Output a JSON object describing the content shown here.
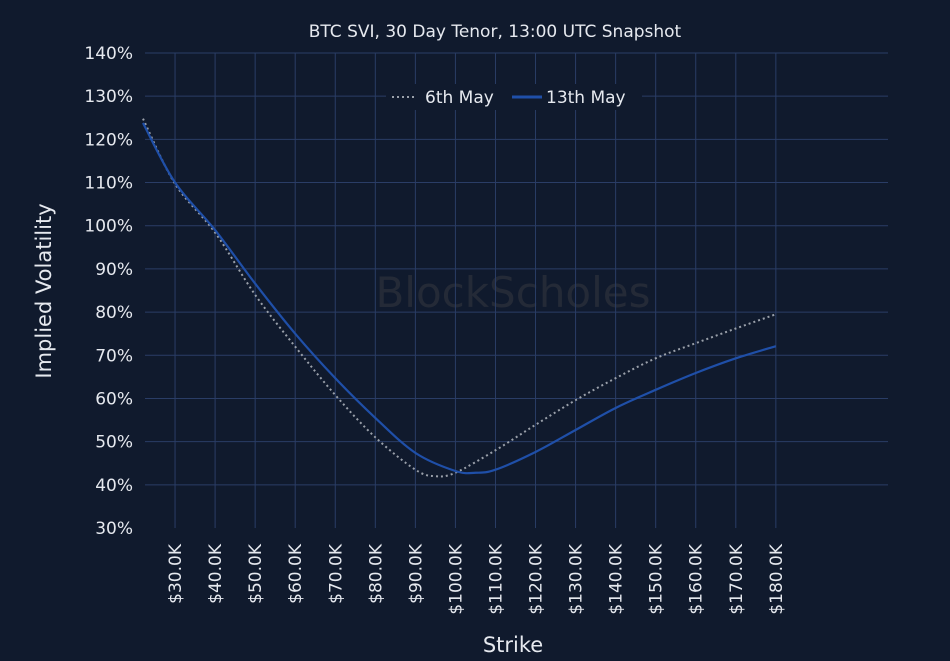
{
  "chart_data": {
    "type": "line",
    "title": "BTC SVI, 30 Day Tenor, 13:00 UTC Snapshot",
    "xlabel": "Strike",
    "ylabel": "Implied Volatility",
    "watermark": "BlockScholes",
    "xlim": [
      22.5,
      208
    ],
    "ylim": [
      30,
      140
    ],
    "x_ticks": [
      30,
      40,
      50,
      60,
      70,
      80,
      90,
      100,
      110,
      120,
      130,
      140,
      150,
      160,
      170,
      180
    ],
    "x_tick_labels": [
      "$30.0K",
      "$40.0K",
      "$50.0K",
      "$60.0K",
      "$70.0K",
      "$80.0K",
      "$90.0K",
      "$100.0K",
      "$110.0K",
      "$120.0K",
      "$130.0K",
      "$140.0K",
      "$150.0K",
      "$160.0K",
      "$170.0K",
      "$180.0K"
    ],
    "y_ticks": [
      30,
      40,
      50,
      60,
      70,
      80,
      90,
      100,
      110,
      120,
      130,
      140
    ],
    "y_tick_labels": [
      "30%",
      "40%",
      "50%",
      "60%",
      "70%",
      "80%",
      "90%",
      "100%",
      "110%",
      "120%",
      "130%",
      "140%"
    ],
    "grid": true,
    "legend_position": "top-center",
    "series": [
      {
        "name": "6th May",
        "style": "dotted",
        "color": "#9aa0aa",
        "x": [
          22,
          30,
          40,
          50,
          60,
          70,
          80,
          90,
          95,
          100,
          110,
          120,
          130,
          140,
          150,
          160,
          170,
          180
        ],
        "y": [
          124.8,
          109.7,
          98.4,
          84,
          72,
          60.8,
          51,
          43.5,
          42,
          42.8,
          48,
          53.9,
          59.6,
          64.7,
          69.3,
          72.8,
          76.2,
          79.5
        ]
      },
      {
        "name": "13th May",
        "style": "solid",
        "color": "#1f4fa8",
        "x": [
          22,
          30,
          40,
          50,
          60,
          70,
          80,
          90,
          100,
          105,
          110,
          120,
          130,
          140,
          150,
          160,
          170,
          180
        ],
        "y": [
          123.8,
          110,
          99,
          86.6,
          75,
          64.7,
          55.5,
          47.4,
          43.2,
          42.8,
          43.5,
          47.6,
          52.7,
          57.8,
          62,
          65.9,
          69.3,
          72.1
        ]
      }
    ]
  },
  "colors": {
    "background": "#101a2d",
    "grid": "#2a3d66",
    "text": "#e6e9ef"
  }
}
